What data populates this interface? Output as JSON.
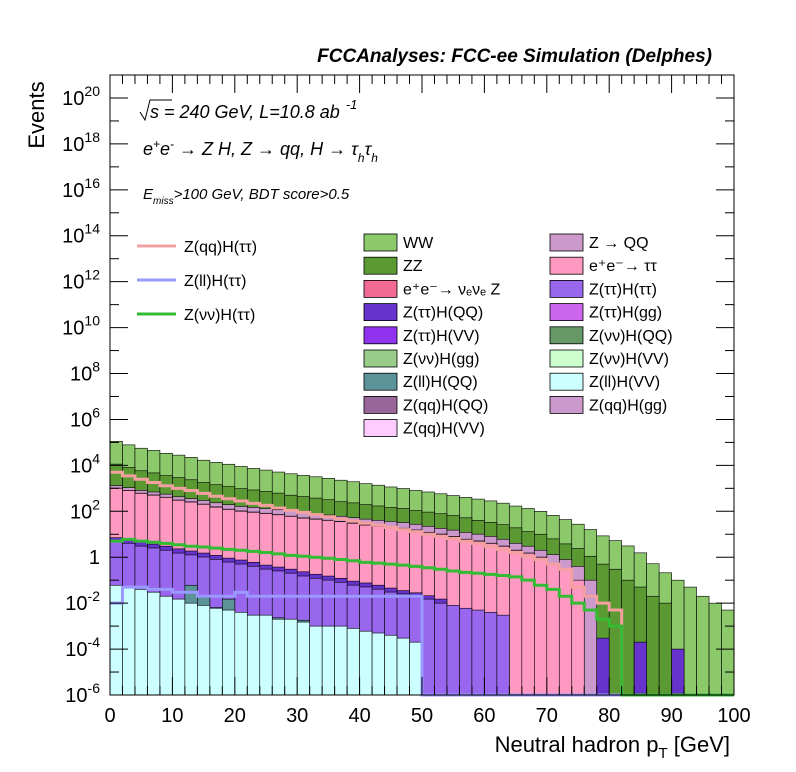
{
  "header": {
    "title": "FCCAnalyses: FCC-ee Simulation (Delphes)",
    "energy_sqrt": "s",
    "energy_rest": " = 240 GeV, L=10.8 ab",
    "lumi_exp": "-1",
    "process": {
      "p1": "e",
      "p1_sup": "+",
      "p2": "e",
      "p2_sup": "-",
      "mid": " → Z H, Z  → qq, H  → τ",
      "tau_sub": "h",
      "tau2": "τ",
      "tau2_sub": "h"
    },
    "cut": {
      "e": "E",
      "e_sub": "miss",
      "rest": ">100 GeV, BDT score>0.5"
    }
  },
  "axes": {
    "y_label": "Events",
    "x_label_main": "Neutral hadron p",
    "x_label_sub": "T",
    "x_label_unit": " [GeV]",
    "x_ticks": [
      "0",
      "10",
      "20",
      "30",
      "40",
      "50",
      "60",
      "70",
      "80",
      "90",
      "100"
    ],
    "y_ticks": [
      {
        "base": "10",
        "exp": "-6"
      },
      {
        "base": "10",
        "exp": "-4"
      },
      {
        "base": "10",
        "exp": "-2"
      },
      {
        "base": "1",
        "exp": ""
      },
      {
        "base": "10",
        "exp": "2"
      },
      {
        "base": "10",
        "exp": "4"
      },
      {
        "base": "10",
        "exp": "6"
      },
      {
        "base": "10",
        "exp": "8"
      },
      {
        "base": "10",
        "exp": "10"
      },
      {
        "base": "10",
        "exp": "12"
      },
      {
        "base": "10",
        "exp": "14"
      },
      {
        "base": "10",
        "exp": "16"
      },
      {
        "base": "10",
        "exp": "18"
      },
      {
        "base": "10",
        "exp": "20"
      }
    ]
  },
  "legend": {
    "signals": [
      {
        "label": "Z(qq)H(ττ)",
        "color": "#f4a0a0"
      },
      {
        "label": "Z(ll)H(ττ)",
        "color": "#9999ff"
      },
      {
        "label": "Z(νν)H(ττ)",
        "color": "#33bb33"
      }
    ],
    "backgrounds_col1": [
      {
        "label": "WW",
        "color": "#8cc96b"
      },
      {
        "label": "ZZ",
        "color": "#5b9a33"
      },
      {
        "label": "e⁺e⁻→ νₑνₑ Z",
        "color": "#f06a93"
      },
      {
        "label": "Z(ττ)H(QQ)",
        "color": "#6633cc"
      },
      {
        "label": "Z(ττ)H(VV)",
        "color": "#8f33ee"
      },
      {
        "label": "Z(νν)H(gg)",
        "color": "#99cc88"
      },
      {
        "label": "Z(ll)H(QQ)",
        "color": "#5c9399"
      },
      {
        "label": "Z(qq)H(QQ)",
        "color": "#996699"
      },
      {
        "label": "Z(qq)H(VV)",
        "color": "#ffccff"
      }
    ],
    "backgrounds_col2": [
      {
        "label": "Z → QQ",
        "color": "#cc99cc"
      },
      {
        "label": "e⁺e⁻→ ττ",
        "color": "#ff99c2"
      },
      {
        "label": "Z(ττ)H(ττ)",
        "color": "#9966ee"
      },
      {
        "label": "Z(ττ)H(gg)",
        "color": "#cc66ee"
      },
      {
        "label": "Z(νν)H(QQ)",
        "color": "#669966"
      },
      {
        "label": "Z(νν)H(VV)",
        "color": "#ccffcc"
      },
      {
        "label": "Z(ll)H(VV)",
        "color": "#ccffff"
      },
      {
        "label": "Z(qq)H(gg)",
        "color": "#cc99cc"
      }
    ]
  },
  "chart_data": {
    "type": "bar",
    "subtype": "stacked-histogram-log",
    "x_range": [
      0,
      100
    ],
    "y_range_log10": [
      -6,
      21
    ],
    "y_scale": "log",
    "bin_width": 2,
    "bins_x_start": [
      0,
      2,
      4,
      6,
      8,
      10,
      12,
      14,
      16,
      18,
      20,
      22,
      24,
      26,
      28,
      30,
      32,
      34,
      36,
      38,
      40,
      42,
      44,
      46,
      48,
      50,
      52,
      54,
      56,
      58,
      60,
      62,
      64,
      66,
      68,
      70,
      72,
      74,
      76,
      78,
      80,
      82,
      84,
      86,
      88,
      90,
      92,
      94,
      96,
      98
    ],
    "stack_series": [
      {
        "name": "Z(ll)H(VV)",
        "color": "#ccffff",
        "values": [
          0.06,
          0.05,
          0.04,
          0.03,
          0.02,
          0.015,
          0.01,
          0.008,
          0.006,
          0.005,
          0.004,
          0.003,
          0.003,
          0.002,
          0.002,
          0.0015,
          0.001,
          0.001,
          0.001,
          0.0008,
          0.0006,
          0.0005,
          0.0004,
          0.0003,
          0.0002,
          0,
          0,
          0,
          0,
          0,
          0,
          0,
          0,
          0,
          0,
          0,
          0,
          0,
          0,
          0,
          0,
          0,
          0,
          0,
          0,
          0,
          0,
          0,
          0,
          0
        ]
      },
      {
        "name": "Z(ll)H(QQ)",
        "color": "#5c9399",
        "values": [
          0,
          0,
          0,
          0,
          0,
          0,
          0.05,
          0.01,
          0.0004,
          0.01,
          0,
          0,
          0,
          0.0003,
          0,
          0.0003,
          0,
          0,
          0,
          0,
          0,
          0,
          0,
          0,
          0,
          0,
          0,
          0,
          0,
          0,
          0,
          0,
          0,
          0,
          0,
          0,
          0,
          0,
          0,
          0,
          0,
          0,
          0,
          0,
          0,
          0,
          0,
          0,
          0,
          0
        ]
      },
      {
        "name": "Z(ττ)H(ττ)",
        "color": "#9966ee",
        "values": [
          5,
          4,
          3,
          2.5,
          2,
          1.5,
          1.2,
          1,
          0.8,
          0.6,
          0.5,
          0.4,
          0.3,
          0.25,
          0.2,
          0.15,
          0.12,
          0.1,
          0.08,
          0.06,
          0.05,
          0.04,
          0.03,
          0.025,
          0.02,
          0.015,
          0.01,
          0.008,
          0.006,
          0.005,
          0.004,
          0.003,
          0,
          0,
          0,
          0,
          0,
          0,
          0,
          0,
          0,
          0,
          0,
          0,
          0,
          0,
          0,
          0,
          0,
          0
        ]
      },
      {
        "name": "Z(ττ)H(QQ)",
        "color": "#6633cc",
        "values": [
          2,
          1.8,
          1.5,
          1.2,
          1,
          0.8,
          0.6,
          0.5,
          0.4,
          0.3,
          0.25,
          0.2,
          0.15,
          0.12,
          0.1,
          0.08,
          0.06,
          0.05,
          0.04,
          0.03,
          0.025,
          0.02,
          0.015,
          0.01,
          0.008,
          0.006,
          0.005,
          0,
          0,
          0,
          0,
          0,
          0,
          0,
          0,
          0,
          0,
          0,
          0,
          0.0003,
          0,
          0,
          0.0002,
          0,
          0,
          0.0001,
          0,
          0,
          0,
          0
        ]
      },
      {
        "name": "e⁺e⁻→ ττ",
        "color": "#ff99c2",
        "values": [
          1000,
          800,
          600,
          500,
          400,
          300,
          250,
          200,
          150,
          120,
          100,
          90,
          80,
          70,
          60,
          50,
          45,
          40,
          35,
          30,
          25,
          22,
          20,
          18,
          15,
          12,
          10,
          8,
          6,
          5,
          4,
          3,
          2,
          1.5,
          1,
          0.5,
          0.3,
          0.1,
          0,
          0,
          0,
          0,
          0,
          0,
          0,
          0,
          0,
          0,
          0,
          0
        ]
      },
      {
        "name": "Z(νν)H(VV)",
        "color": "#ccffcc",
        "values": [
          2,
          1.8,
          1.5,
          1.2,
          1,
          0.9,
          0.8,
          0.7,
          0.6,
          0.5,
          0.4,
          0.35,
          0.3,
          0.25,
          0.2,
          0.18,
          0.15,
          0.12,
          0.1,
          0.09,
          0.08,
          0.07,
          0.06,
          0.05,
          0.04,
          0.035,
          0.03,
          0.025,
          0.02,
          0.015,
          0.02,
          0.01,
          0.005,
          0,
          0,
          0,
          0,
          0,
          0,
          0,
          0,
          0,
          0,
          0,
          0,
          0,
          0,
          0,
          0,
          0
        ]
      },
      {
        "name": "Z(qq)H(VV)",
        "color": "#ffccff",
        "values": [
          10,
          9,
          8,
          7,
          6,
          5,
          4,
          3.5,
          3,
          2.5,
          2,
          1.8,
          1.5,
          1.2,
          1,
          0.9,
          0.8,
          0.7,
          0.6,
          0.5,
          0.4,
          0.35,
          0.3,
          0.25,
          0.2,
          0.15,
          0.12,
          0.1,
          0.08,
          0.06,
          0.05,
          0.04,
          0.03,
          0.02,
          0.01,
          0.005,
          0,
          0,
          0,
          0,
          0,
          0,
          0,
          0,
          0,
          0,
          0,
          0,
          0,
          0
        ]
      },
      {
        "name": "Z → QQ",
        "color": "#cc99cc",
        "values": [
          300,
          250,
          200,
          180,
          150,
          120,
          100,
          90,
          80,
          70,
          60,
          55,
          50,
          45,
          40,
          35,
          30,
          28,
          25,
          22,
          20,
          18,
          16,
          14,
          12,
          10,
          8,
          7,
          6,
          5,
          4,
          3,
          2,
          1.5,
          1,
          0.8,
          0.5,
          0.3,
          0.1,
          0,
          0,
          0,
          0,
          0,
          0,
          0,
          0,
          0,
          0,
          0
        ]
      },
      {
        "name": "ZZ",
        "color": "#5b9a33",
        "values": [
          10000,
          7000,
          5000,
          4000,
          3000,
          2500,
          2000,
          1500,
          1200,
          1000,
          800,
          700,
          600,
          500,
          400,
          350,
          300,
          250,
          200,
          180,
          150,
          130,
          110,
          100,
          80,
          70,
          60,
          50,
          40,
          30,
          25,
          20,
          15,
          10,
          8,
          5,
          3,
          2,
          1,
          0.5,
          0.3,
          0.1,
          0.05,
          0.02,
          0.01,
          0,
          0,
          0,
          0,
          0
        ]
      },
      {
        "name": "WW",
        "color": "#8cc96b",
        "values": [
          100000,
          70000,
          50000,
          40000,
          30000,
          25000,
          20000,
          15000,
          12000,
          10000,
          8000,
          6500,
          5500,
          4500,
          3800,
          3200,
          2800,
          2400,
          2000,
          1700,
          1400,
          1200,
          1000,
          850,
          700,
          600,
          500,
          420,
          350,
          300,
          250,
          200,
          150,
          120,
          90,
          60,
          40,
          25,
          15,
          8,
          5,
          3,
          1.5,
          0.5,
          0.2,
          0.1,
          0.05,
          0.02,
          0.01,
          0.005
        ]
      }
    ],
    "signal_lines": [
      {
        "name": "Z(qq)H(ττ)",
        "color": "#f4a0a0",
        "values": [
          5000,
          3500,
          2500,
          1800,
          1300,
          1000,
          800,
          600,
          450,
          350,
          280,
          220,
          180,
          140,
          110,
          90,
          72,
          58,
          46,
          38,
          30,
          25,
          20,
          16,
          13,
          10,
          8,
          6.5,
          5,
          4,
          3,
          2.2,
          1.6,
          1.1,
          0.8,
          0.5,
          0.3,
          0.05,
          0.02,
          0.01,
          0.005,
          0,
          0,
          0,
          0,
          0,
          0,
          0,
          0,
          0
        ]
      },
      {
        "name": "Z(ll)H(ττ)",
        "color": "#9999ff",
        "values": [
          0.01,
          0.05,
          0.05,
          0.04,
          0.04,
          0.03,
          0.03,
          0.02,
          0.02,
          0.02,
          0.03,
          0.02,
          0.02,
          0.02,
          0.02,
          0.02,
          0.02,
          0.02,
          0.02,
          0.02,
          0.02,
          0.02,
          0.02,
          0.02,
          0.02,
          0,
          0,
          0,
          0,
          0,
          0,
          0,
          0,
          0,
          0,
          0,
          0,
          0,
          0,
          0,
          0,
          0,
          0,
          0,
          0,
          0,
          0,
          0,
          0,
          0
        ]
      },
      {
        "name": "Z(νν)H(ττ)",
        "color": "#33bb33",
        "values": [
          5,
          6,
          5,
          4.5,
          4,
          3.5,
          3,
          2.8,
          2.5,
          2.2,
          2,
          1.8,
          1.6,
          1.4,
          1.2,
          1.1,
          1,
          0.9,
          0.8,
          0.7,
          0.6,
          0.55,
          0.5,
          0.45,
          0.4,
          0.35,
          0.3,
          0.25,
          0.22,
          0.2,
          0.18,
          0.16,
          0.14,
          0.1,
          0.06,
          0.04,
          0.02,
          0.01,
          0.005,
          0.002,
          0.001,
          0,
          0,
          0,
          0,
          0,
          0,
          0,
          0,
          0
        ]
      }
    ]
  }
}
